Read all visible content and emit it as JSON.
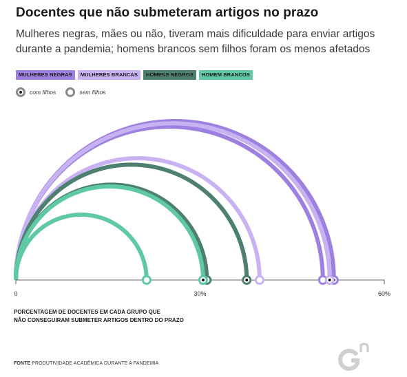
{
  "header": {
    "title": "Docentes que não submeteram artigos no prazo",
    "subtitle": "Mulheres negras, mães ou não, tiveram mais dificuldade para enviar artigos durante a pandemia; homens brancos sem filhos foram os menos afetados"
  },
  "legend": {
    "groups": [
      {
        "label": "MULHERES NEGRAS",
        "bg": "#9d80e0",
        "fg": "#1a1a1a"
      },
      {
        "label": "MULHERES BRANCAS",
        "bg": "#c9b2f2",
        "fg": "#1a1a1a"
      },
      {
        "label": "HOMENS NEGROS",
        "bg": "#4d8070",
        "fg": "#1a1a1a"
      },
      {
        "label": "HOMEM BRANCOS",
        "bg": "#5ec9a2",
        "fg": "#1a1a1a"
      }
    ],
    "markers": {
      "with_children": "com filhos",
      "without_children": "sem filhos"
    }
  },
  "axis": {
    "tick_labels": [
      "0",
      "30%",
      "60%"
    ]
  },
  "note": "PORCENTAGEM DE DOCENTES EM CADA GRUPO QUE\nNÃO CONSEGUIRAM SUBMETER ARTIGOS DENTRO DO PRAZO",
  "source": {
    "label": "FONTE",
    "text": "PRODUTIVIDADE ACADÊMICA DURANTE A PANDEMIA"
  },
  "logo_icon": "gn-logo-icon",
  "colors": {
    "mulheres_negras": "#9d80e0",
    "mulheres_brancas": "#c9b2f2",
    "homens_negros": "#4d8070",
    "homens_brancos": "#5ec9a2",
    "axis": "#333333"
  },
  "chart_data": {
    "type": "arc",
    "xlim": [
      0,
      60
    ],
    "x_unit": "%",
    "ticks": [
      0,
      30,
      60
    ],
    "series": [
      {
        "name": "MULHERES NEGRAS",
        "color": "#9d80e0",
        "points": [
          {
            "marker": "sem filhos",
            "value": 50.0
          },
          {
            "marker": "com filhos",
            "value": 51.8
          }
        ]
      },
      {
        "name": "MULHERES BRANCAS",
        "color": "#c9b2f2",
        "points": [
          {
            "marker": "sem filhos",
            "value": 39.7
          },
          {
            "marker": "com filhos",
            "value": 51.1
          }
        ]
      },
      {
        "name": "HOMENS NEGROS",
        "color": "#4d8070",
        "points": [
          {
            "marker": "sem filhos",
            "value": 31.1
          },
          {
            "marker": "com filhos",
            "value": 37.6
          }
        ]
      },
      {
        "name": "HOMEM BRANCOS",
        "color": "#5ec9a2",
        "points": [
          {
            "marker": "sem filhos",
            "value": 21.3
          },
          {
            "marker": "com filhos",
            "value": 30.5
          }
        ]
      }
    ]
  }
}
